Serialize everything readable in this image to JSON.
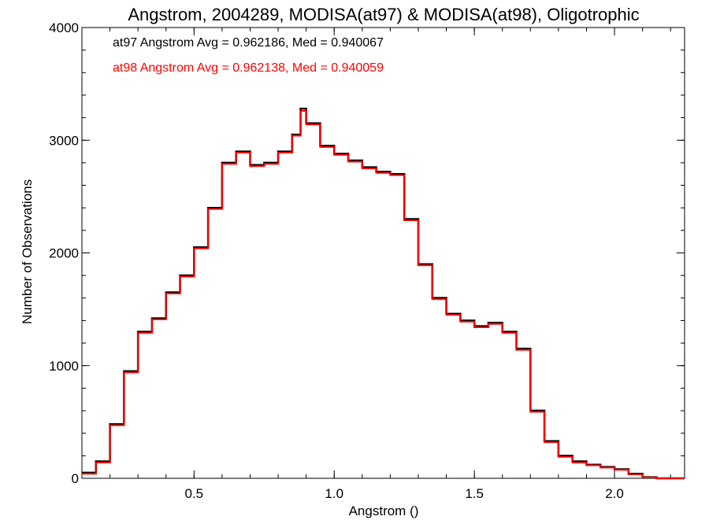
{
  "chart_data": {
    "type": "line",
    "step": true,
    "title": "Angstrom, 2004289, MODISA(at97) & MODISA(at98), Oligotrophic",
    "xlabel": "Angstrom ()",
    "ylabel": "Number of Observations",
    "xlim": [
      0.1,
      2.25
    ],
    "ylim": [
      0,
      4000
    ],
    "xticks": [
      0.5,
      1.0,
      1.5,
      2.0
    ],
    "xtick_labels": [
      "0.5",
      "1.0",
      "1.5",
      "2.0"
    ],
    "yticks": [
      0,
      1000,
      2000,
      3000,
      4000
    ],
    "ytick_labels": [
      "0",
      "1000",
      "2000",
      "3000",
      "4000"
    ],
    "grid": false,
    "legend_position": "top-left",
    "annotations": [
      {
        "text": "at97 Angstrom Avg = 0.962186, Med = 0.940067",
        "color": "#000000"
      },
      {
        "text": "at98 Angstrom Avg = 0.962138, Med = 0.940059",
        "color": "#ff0000"
      }
    ],
    "x": [
      0.1,
      0.15,
      0.2,
      0.25,
      0.3,
      0.35,
      0.4,
      0.45,
      0.5,
      0.55,
      0.6,
      0.65,
      0.7,
      0.75,
      0.8,
      0.85,
      0.88,
      0.9,
      0.95,
      1.0,
      1.05,
      1.1,
      1.15,
      1.2,
      1.25,
      1.3,
      1.35,
      1.4,
      1.45,
      1.5,
      1.55,
      1.6,
      1.65,
      1.7,
      1.75,
      1.8,
      1.85,
      1.9,
      1.95,
      2.0,
      2.05,
      2.1,
      2.15,
      2.2,
      2.25
    ],
    "series": [
      {
        "name": "at97",
        "color": "#000000",
        "values": [
          50,
          150,
          480,
          950,
          1300,
          1420,
          1650,
          1800,
          2050,
          2400,
          2800,
          2900,
          2780,
          2800,
          2900,
          3050,
          3280,
          3150,
          2950,
          2880,
          2820,
          2760,
          2720,
          2700,
          2300,
          1900,
          1600,
          1460,
          1400,
          1350,
          1380,
          1300,
          1150,
          600,
          330,
          200,
          150,
          120,
          100,
          80,
          40,
          10,
          0,
          0,
          0
        ]
      },
      {
        "name": "at98",
        "color": "#ff0000",
        "values": [
          40,
          140,
          470,
          940,
          1290,
          1410,
          1640,
          1790,
          2040,
          2390,
          2790,
          2890,
          2770,
          2790,
          2890,
          3040,
          3260,
          3140,
          2940,
          2870,
          2810,
          2750,
          2710,
          2690,
          2290,
          1890,
          1590,
          1450,
          1390,
          1340,
          1370,
          1290,
          1140,
          590,
          320,
          190,
          140,
          115,
          95,
          75,
          35,
          8,
          0,
          0,
          0
        ]
      }
    ]
  }
}
